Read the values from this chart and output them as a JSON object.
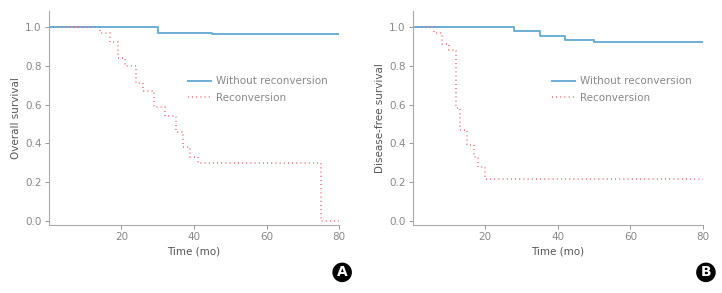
{
  "panel_A": {
    "ylabel": "Overall survival",
    "xlabel": "Time (mo)",
    "label": "A",
    "blue_x": [
      0,
      30,
      30,
      45,
      45,
      80
    ],
    "blue_y": [
      1.0,
      1.0,
      0.97,
      0.97,
      0.96,
      0.96
    ],
    "red_x": [
      0,
      14,
      14,
      17,
      17,
      19,
      19,
      21,
      21,
      24,
      24,
      26,
      26,
      29,
      29,
      32,
      32,
      35,
      35,
      37,
      37,
      39,
      39,
      41,
      41,
      44,
      44,
      48,
      48,
      72,
      72,
      75,
      75,
      80
    ],
    "red_y": [
      1.0,
      1.0,
      0.97,
      0.97,
      0.92,
      0.92,
      0.84,
      0.84,
      0.8,
      0.8,
      0.71,
      0.71,
      0.67,
      0.67,
      0.59,
      0.59,
      0.54,
      0.54,
      0.46,
      0.46,
      0.38,
      0.38,
      0.33,
      0.33,
      0.3,
      0.3,
      0.3,
      0.3,
      0.3,
      0.3,
      0.3,
      0.3,
      0.0,
      0.0
    ],
    "xlim": [
      0,
      80
    ],
    "ylim": [
      -0.02,
      1.08
    ],
    "xticks": [
      20,
      40,
      60,
      80
    ],
    "yticks": [
      0,
      0.2,
      0.4,
      0.6,
      0.8,
      1.0
    ]
  },
  "panel_B": {
    "ylabel": "Disease-free survival",
    "xlabel": "Time (mo)",
    "label": "B",
    "blue_x": [
      0,
      28,
      28,
      35,
      35,
      42,
      42,
      50,
      50,
      80
    ],
    "blue_y": [
      1.0,
      1.0,
      0.98,
      0.98,
      0.95,
      0.95,
      0.93,
      0.93,
      0.92,
      0.92
    ],
    "red_x": [
      0,
      6,
      6,
      8,
      8,
      10,
      10,
      12,
      12,
      13,
      13,
      15,
      15,
      17,
      17,
      18,
      18,
      20,
      20,
      22,
      22,
      23,
      23,
      25,
      25,
      80
    ],
    "red_y": [
      1.0,
      1.0,
      0.97,
      0.97,
      0.91,
      0.91,
      0.88,
      0.88,
      0.58,
      0.58,
      0.47,
      0.47,
      0.39,
      0.39,
      0.33,
      0.33,
      0.28,
      0.28,
      0.22,
      0.22,
      0.22,
      0.22,
      0.22,
      0.22,
      0.22,
      0.22
    ],
    "xlim": [
      0,
      80
    ],
    "ylim": [
      -0.02,
      1.08
    ],
    "xticks": [
      20,
      40,
      60,
      80
    ],
    "yticks": [
      0,
      0.2,
      0.4,
      0.6,
      0.8,
      1.0
    ]
  },
  "blue_color": "#6BAED6",
  "red_color": "#E06060",
  "legend_blue_label": "Without reconversion",
  "legend_red_label": "Reconversion",
  "background_color": "#FFFFFF",
  "spine_color": "#AAAAAA",
  "tick_color": "#888888",
  "label_color": "#555555",
  "fontsize_label": 7.5,
  "fontsize_tick": 7.5,
  "fontsize_legend": 7.5,
  "fontsize_panel_label": 10
}
